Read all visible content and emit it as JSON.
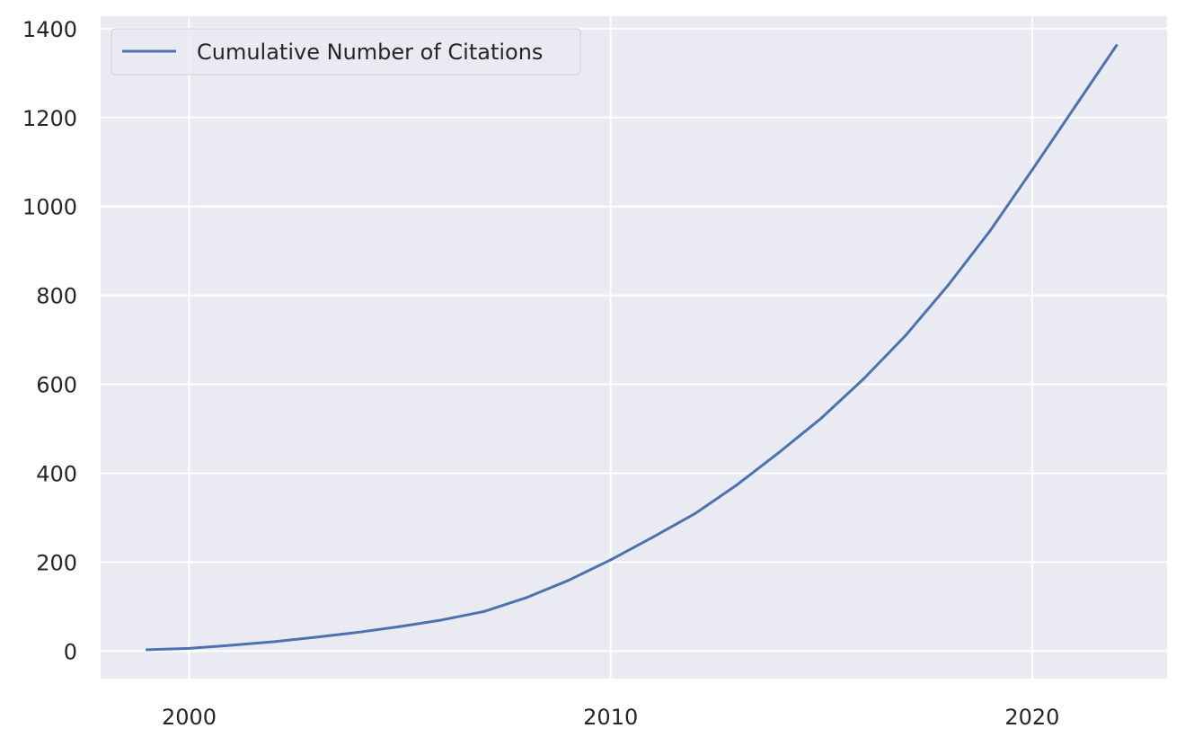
{
  "chart_data": {
    "type": "line",
    "title": "",
    "xlabel": "",
    "ylabel": "",
    "xlim": [
      1997.9,
      2023.2
    ],
    "ylim": [
      -62,
      1428
    ],
    "x_ticks": [
      2000,
      2010,
      2020
    ],
    "y_ticks": [
      0,
      200,
      400,
      600,
      800,
      1000,
      1200,
      1400
    ],
    "grid": true,
    "legend_position": "top-left",
    "series": [
      {
        "name": "Cumulative Number of Citations",
        "color": "#4c72b0",
        "x": [
          1999,
          2000,
          2001,
          2002,
          2003,
          2004,
          2005,
          2006,
          2007,
          2008,
          2009,
          2010,
          2011,
          2012,
          2013,
          2014,
          2015,
          2016,
          2017,
          2018,
          2019,
          2020,
          2021,
          2022
        ],
        "y": [
          3,
          6,
          13,
          21,
          31,
          42,
          55,
          70,
          89,
          120,
          159,
          205,
          256,
          309,
          374,
          447,
          524,
          612,
          710,
          822,
          945,
          1082,
          1222,
          1362
        ]
      }
    ]
  },
  "colors": {
    "plot_background": "#eaeaf2",
    "grid": "#ffffff",
    "text": "#262626",
    "legend_border": "#cccccc"
  }
}
